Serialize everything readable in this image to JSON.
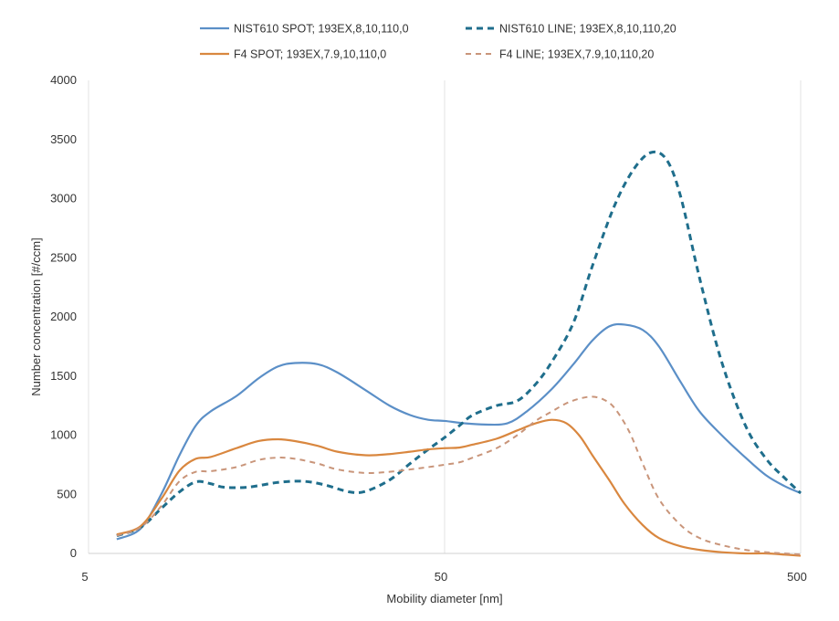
{
  "chart_data": {
    "type": "line",
    "title": "",
    "xlabel": "Mobility diameter [nm]",
    "ylabel": "Number concentration [#/ccm]",
    "x_scale": "log",
    "xlim": [
      5,
      500
    ],
    "ylim": [
      0,
      4000
    ],
    "x_ticks": [
      5,
      50,
      500
    ],
    "x_tick_labels": [
      "5",
      "50",
      "500"
    ],
    "y_ticks": [
      0,
      500,
      1000,
      1500,
      2000,
      2500,
      3000,
      3500,
      4000
    ],
    "y_tick_labels": [
      "0",
      "500",
      "1000",
      "1500",
      "2000",
      "2500",
      "3000",
      "3500",
      "4000"
    ],
    "grid": "major vertical lines at decades",
    "legend_position": "top",
    "series": [
      {
        "name": "NIST610 SPOT; 193EX,8,10,110,0",
        "color": "#5b8fc7",
        "style": "solid",
        "x": [
          6.0,
          7.0,
          8.0,
          9.0,
          10.0,
          11.0,
          13.0,
          15.0,
          17.0,
          19.0,
          22.0,
          25.0,
          30.0,
          35.0,
          40.0,
          45.0,
          50.0,
          57.0,
          65.0,
          75.0,
          85.0,
          100.0,
          115.0,
          130.0,
          145.0,
          160.0,
          180.0,
          200.0,
          230.0,
          260.0,
          300.0,
          350.0,
          400.0,
          450.0,
          500.0
        ],
        "y": [
          120,
          210,
          500,
          830,
          1080,
          1200,
          1330,
          1480,
          1580,
          1610,
          1600,
          1530,
          1380,
          1250,
          1170,
          1130,
          1120,
          1100,
          1090,
          1100,
          1200,
          1390,
          1600,
          1800,
          1920,
          1935,
          1890,
          1750,
          1450,
          1200,
          1000,
          810,
          660,
          570,
          510
        ]
      },
      {
        "name": "NIST610 LINE; 193EX,8,10,110,20",
        "color": "#1f6e8c",
        "style": "dashed",
        "x": [
          6.0,
          7.0,
          8.0,
          9.0,
          10.0,
          11.0,
          12.0,
          14.0,
          17.0,
          20.0,
          23.0,
          27.0,
          30.0,
          35.0,
          40.0,
          45.0,
          50.0,
          55.0,
          60.0,
          70.0,
          80.0,
          90.0,
          100.0,
          115.0,
          130.0,
          150.0,
          170.0,
          190.0,
          210.0,
          230.0,
          260.0,
          300.0,
          350.0,
          400.0,
          450.0,
          500.0
        ],
        "y": [
          150,
          220,
          380,
          520,
          605,
          590,
          560,
          560,
          600,
          610,
          580,
          520,
          525,
          620,
          760,
          880,
          980,
          1080,
          1170,
          1250,
          1290,
          1430,
          1620,
          1950,
          2430,
          2940,
          3250,
          3390,
          3330,
          3020,
          2330,
          1620,
          1080,
          800,
          640,
          510
        ]
      },
      {
        "name": "F4 SPOT; 193EX,7.9,10,110,0",
        "color": "#d9873f",
        "style": "solid",
        "x": [
          6.0,
          7.0,
          8.0,
          9.0,
          10.0,
          11.0,
          13.0,
          15.0,
          17.0,
          19.0,
          22.0,
          25.0,
          30.0,
          35.0,
          40.0,
          45.0,
          50.0,
          55.0,
          60.0,
          70.0,
          80.0,
          90.0,
          100.0,
          110.0,
          120.0,
          130.0,
          145.0,
          160.0,
          180.0,
          200.0,
          230.0,
          260.0,
          300.0,
          350.0,
          400.0,
          450.0,
          500.0
        ],
        "y": [
          160,
          230,
          460,
          700,
          800,
          815,
          890,
          950,
          965,
          950,
          910,
          860,
          830,
          840,
          860,
          880,
          890,
          895,
          920,
          970,
          1040,
          1100,
          1130,
          1100,
          990,
          830,
          620,
          420,
          240,
          130,
          60,
          30,
          10,
          0,
          0,
          -10,
          -20
        ]
      },
      {
        "name": "F4 LINE; 193EX,7.9,10,110,20",
        "color": "#c9957a",
        "style": "dashed",
        "x": [
          6.0,
          7.0,
          8.0,
          9.0,
          10.0,
          11.0,
          13.0,
          15.0,
          17.0,
          19.0,
          22.0,
          25.0,
          30.0,
          35.0,
          40.0,
          45.0,
          50.0,
          55.0,
          60.0,
          70.0,
          80.0,
          90.0,
          100.0,
          110.0,
          120.0,
          130.0,
          140.0,
          150.0,
          165.0,
          180.0,
          200.0,
          230.0,
          260.0,
          300.0,
          350.0,
          400.0,
          450.0,
          500.0
        ],
        "y": [
          150,
          220,
          400,
          610,
          690,
          695,
          730,
          790,
          810,
          800,
          760,
          710,
          680,
          690,
          710,
          730,
          750,
          770,
          810,
          890,
          1000,
          1120,
          1200,
          1270,
          1310,
          1325,
          1300,
          1230,
          1030,
          760,
          460,
          240,
          130,
          70,
          30,
          10,
          0,
          -10
        ]
      }
    ]
  }
}
